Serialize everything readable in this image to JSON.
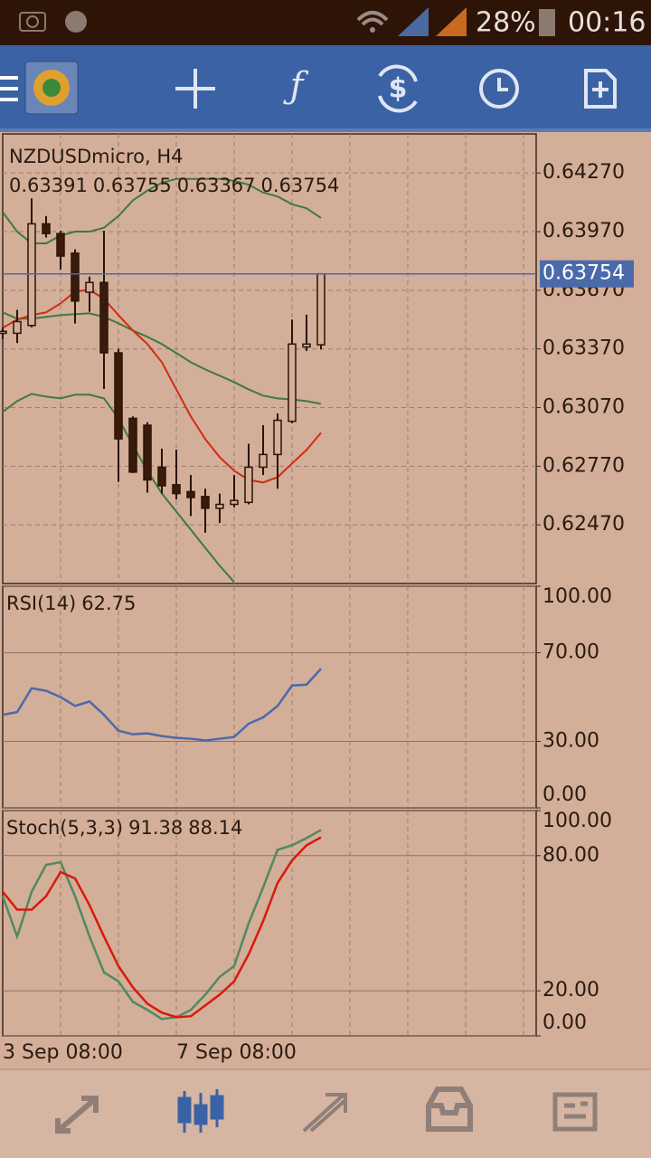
{
  "status_bar": {
    "battery": "28%",
    "time": "00:16"
  },
  "chart_data": [
    {
      "type": "candlestick",
      "title": "NZDUSDmicro, H4",
      "categories": [
        "3 Sep 08:00",
        null,
        null,
        null,
        null,
        null,
        null,
        null,
        null,
        null,
        null,
        null,
        "7 Sep 08:00",
        null,
        null,
        null,
        null,
        null,
        null,
        null,
        null,
        null,
        null
      ],
      "open": [
        0.6345,
        0.6345,
        0.6349,
        0.6401,
        0.6396,
        0.6386,
        0.6366,
        0.6371,
        0.6335,
        0.63015,
        0.6298,
        0.62765,
        0.62675,
        0.6264,
        0.62615,
        0.62555,
        0.62575,
        0.62585,
        0.62765,
        0.6283,
        0.63,
        0.6338,
        0.63391
      ],
      "high": [
        0.6348,
        0.6357,
        0.6414,
        0.6405,
        0.63975,
        0.6388,
        0.6374,
        0.63975,
        0.6337,
        0.63025,
        0.62995,
        0.6286,
        0.62855,
        0.62725,
        0.62655,
        0.6263,
        0.62725,
        0.62885,
        0.6298,
        0.6304,
        0.6352,
        0.63545,
        0.63755
      ],
      "low": [
        0.6342,
        0.634,
        0.6348,
        0.6394,
        0.63775,
        0.635,
        0.6356,
        0.63165,
        0.6269,
        0.62735,
        0.62635,
        0.6263,
        0.626,
        0.62515,
        0.6243,
        0.6248,
        0.6256,
        0.62575,
        0.62725,
        0.62655,
        0.6299,
        0.6336,
        0.63367
      ],
      "close": [
        0.6346,
        0.6351,
        0.6401,
        0.6396,
        0.63845,
        0.63615,
        0.6371,
        0.6335,
        0.6291,
        0.6274,
        0.627,
        0.6267,
        0.6263,
        0.6261,
        0.62555,
        0.62575,
        0.62595,
        0.62765,
        0.6283,
        0.63005,
        0.63395,
        0.63395,
        0.63754
      ],
      "series": [
        {
          "color": "#3e7a3e",
          "values": [
            0.6407,
            0.6397,
            0.6391,
            0.6391,
            0.6395,
            0.6397,
            0.6397,
            0.6399,
            0.6405,
            0.6413,
            0.6418,
            0.6422,
            0.6424,
            0.6424,
            0.6424,
            0.6424,
            0.6423,
            0.6421,
            0.6417,
            0.6415,
            0.6411,
            0.6409,
            0.6404
          ]
        },
        {
          "color": "#3e7a3e",
          "values": [
            0.63557,
            0.63525,
            0.63525,
            0.63534,
            0.63543,
            0.63548,
            0.63552,
            0.63534,
            0.63501,
            0.63464,
            0.63432,
            0.63395,
            0.63349,
            0.63302,
            0.63265,
            0.63233,
            0.632,
            0.63163,
            0.63131,
            0.63117,
            0.63112,
            0.63103,
            0.63089
          ]
        },
        {
          "color": "#3e7a3e",
          "values": [
            0.63048,
            0.63103,
            0.6314,
            0.63126,
            0.63117,
            0.63136,
            0.63136,
            0.63117,
            0.63015,
            0.62876,
            0.62747,
            0.62631,
            0.62538,
            0.62446,
            0.62353,
            0.62261,
            0.62177,
            null,
            null,
            null,
            null,
            null,
            null
          ]
        },
        {
          "color": "#d42a14",
          "values": [
            0.63478,
            0.6352,
            0.63543,
            0.63557,
            0.63603,
            0.63663,
            0.63673,
            0.63626,
            0.63543,
            0.63464,
            0.63395,
            0.63302,
            0.63163,
            0.63025,
            0.62909,
            0.62816,
            0.62747,
            0.627,
            0.62687,
            0.62714,
            0.62784,
            0.62853,
            0.62941
          ]
        }
      ],
      "up_color": "#d3ae99",
      "down_color": "#3a1a0a",
      "price_line_color": "#4a6aaa",
      "ylim": [
        0.6217,
        0.6447
      ],
      "yticks": [
        {
          "value": 0.6427,
          "label": "0.64270"
        },
        {
          "value": 0.6397,
          "label": "0.63970"
        },
        {
          "value": 0.6367,
          "label": "0.63670"
        },
        {
          "value": 0.6337,
          "label": "0.63370"
        },
        {
          "value": 0.6307,
          "label": "0.63070"
        },
        {
          "value": 0.6277,
          "label": "0.62770"
        },
        {
          "value": 0.6247,
          "label": "0.62470"
        }
      ],
      "grid": true
    },
    {
      "type": "line",
      "title": "RSI(14)",
      "series": [
        {
          "color": "#4a6aaa",
          "values": [
            42,
            43.2,
            54,
            52.8,
            50,
            46,
            48,
            42,
            34.8,
            33.2,
            33.6,
            32.4,
            31.6,
            31.2,
            30.4,
            31.2,
            32,
            38,
            40.8,
            46,
            55.2,
            55.6,
            62.75
          ]
        }
      ],
      "ylim": [
        0,
        100
      ],
      "yticks": [
        {
          "value": 100,
          "label": "100.00"
        },
        {
          "value": 70,
          "label": "70.00"
        },
        {
          "value": 30,
          "label": "30.00"
        },
        {
          "value": 0,
          "label": "0.00"
        }
      ],
      "grid": true
    },
    {
      "type": "line",
      "title": "Stoch(5,3,3)",
      "series": [
        {
          "color": "#4f8a60",
          "values": [
            62,
            44.1,
            64,
            75.9,
            77.1,
            62,
            44.1,
            28.2,
            24.2,
            15.1,
            11.5,
            7.5,
            8.3,
            11.5,
            18.3,
            26.2,
            31,
            50,
            65.9,
            82.6,
            84.6,
            87.8,
            91.38
          ]
        },
        {
          "color": "#d81a0a",
          "values": [
            64,
            56,
            56,
            62,
            72.7,
            69.9,
            58,
            44.1,
            31,
            21.5,
            14.3,
            10.3,
            8.3,
            8.7,
            13.5,
            18.3,
            24.2,
            36.2,
            50.9,
            67.9,
            77.9,
            84.6,
            88.14
          ]
        }
      ],
      "ylim": [
        0,
        100
      ],
      "yticks": [
        {
          "value": 100,
          "label": "100.00"
        },
        {
          "value": 80,
          "label": "80.00"
        },
        {
          "value": 20,
          "label": "20.00"
        },
        {
          "value": 0,
          "label": "0.00"
        }
      ],
      "grid": true
    }
  ]
}
